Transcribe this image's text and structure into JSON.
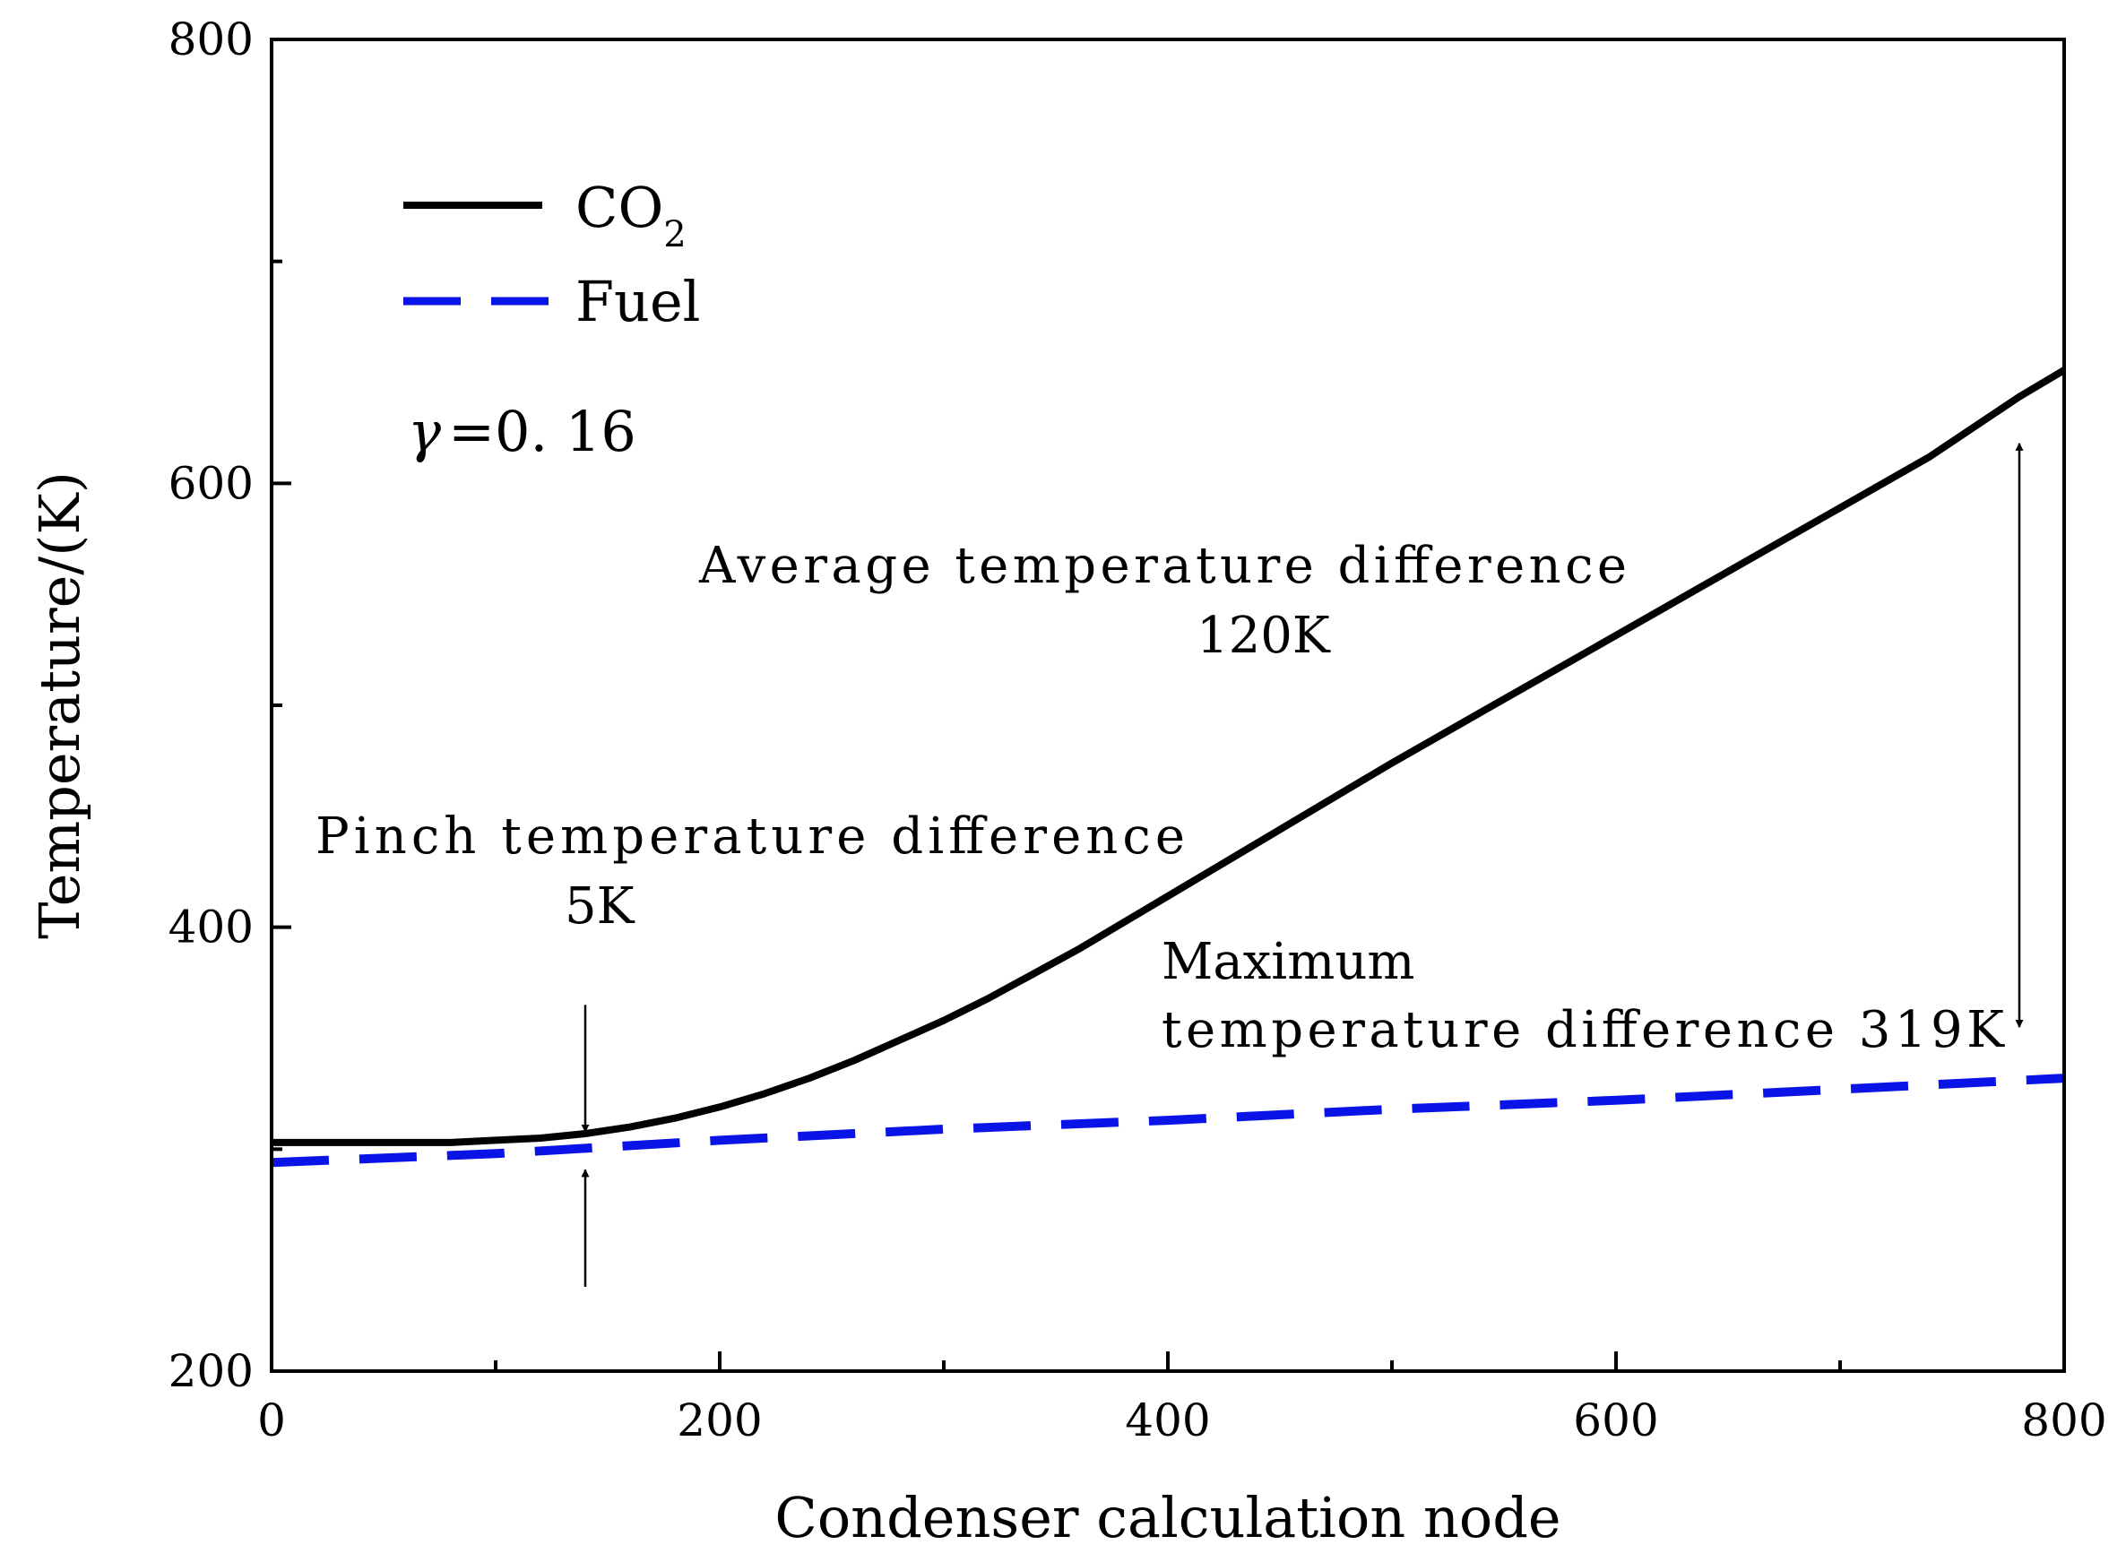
{
  "chart_data": {
    "type": "line",
    "title": "",
    "xlabel": "Condenser calculation node",
    "ylabel": "Temperature/(K)",
    "xlim": [
      0,
      800
    ],
    "ylim": [
      200,
      800
    ],
    "x_ticks": [
      0,
      200,
      400,
      600,
      800
    ],
    "y_ticks": [
      200,
      400,
      600,
      800
    ],
    "x_minor_ticks": [
      100,
      300,
      500,
      700
    ],
    "y_minor_ticks": [
      300,
      500,
      700
    ],
    "legend_position": "top-left",
    "series": [
      {
        "name": "CO2",
        "legend_main": "CO",
        "legend_sub": "2",
        "style": "solid",
        "color": "#000000",
        "x": [
          0,
          20,
          40,
          60,
          80,
          100,
          120,
          140,
          160,
          180,
          200,
          220,
          240,
          260,
          280,
          300,
          320,
          340,
          360,
          380,
          400,
          420,
          440,
          460,
          480,
          500,
          540,
          580,
          620,
          660,
          700,
          740,
          780,
          800
        ],
        "y": [
          303,
          303,
          303,
          303,
          303,
          304,
          305,
          307,
          310,
          314,
          319,
          325,
          332,
          340,
          349,
          358,
          368,
          379,
          390,
          402,
          414,
          426,
          438,
          450,
          462,
          474,
          497,
          520,
          543,
          566,
          589,
          612,
          639,
          651
        ]
      },
      {
        "name": "Fuel",
        "legend_main": "Fuel",
        "style": "dashed",
        "color": "#0a14e6",
        "x": [
          0,
          100,
          200,
          300,
          400,
          500,
          600,
          700,
          800
        ],
        "y": [
          294,
          298,
          304,
          309,
          313,
          318,
          322,
          327,
          332
        ]
      }
    ],
    "annotations": {
      "gamma_symbol": "γ",
      "gamma_text": "=0. 16",
      "average_line1": "Average temperature difference",
      "average_line2": "120K",
      "pinch_line1": "Pinch temperature difference",
      "pinch_line2": "5K",
      "maximum_line1": "Maximum",
      "maximum_line2": "temperature difference 319K"
    },
    "arrows": {
      "pinch_x": 140,
      "pinch_top": [
        365,
        307
      ],
      "pinch_bottom": [
        238,
        298
      ],
      "maximum_x": 780,
      "maximum_span": [
        355,
        618
      ]
    }
  }
}
